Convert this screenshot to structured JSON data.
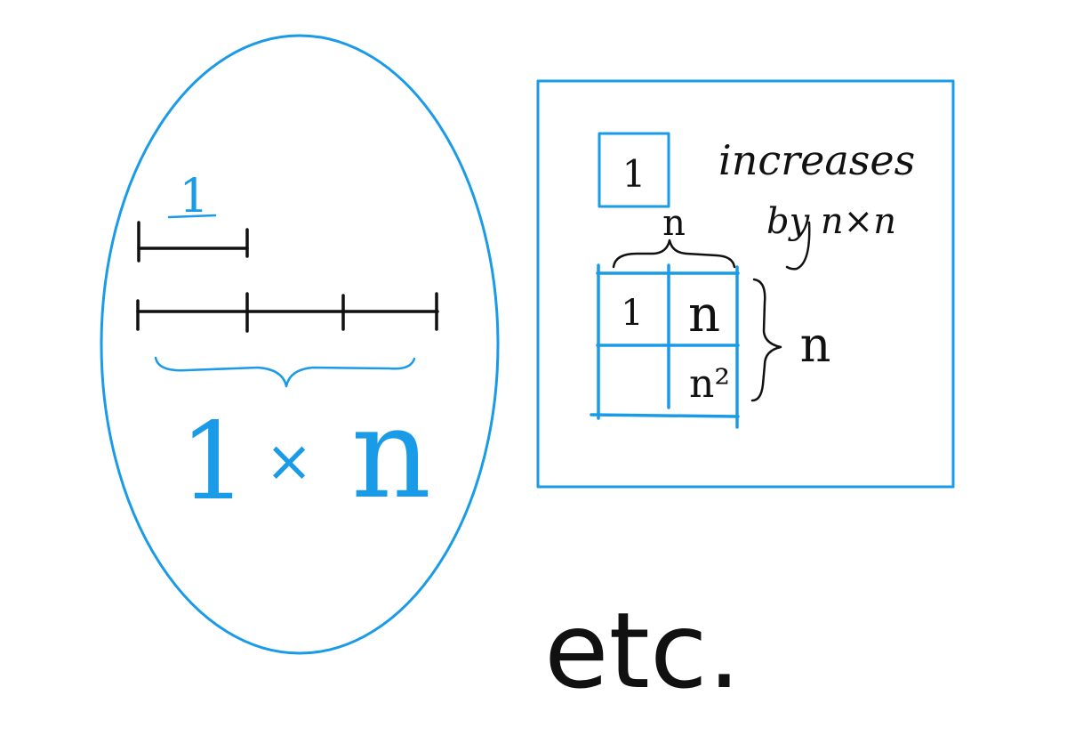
{
  "left_panel": {
    "unit_label": "1",
    "product_label": {
      "left": "1",
      "times": "×",
      "right": "n"
    }
  },
  "right_panel": {
    "unit_box_label": "1",
    "note_line1": "increases",
    "note_line2": "by n×n",
    "top_brace_label": "n",
    "side_brace_label": "n",
    "grid_cells": [
      "1",
      "n",
      "",
      "n²"
    ]
  },
  "footer_text": "etc.",
  "colors": {
    "accent": "#1a9be8",
    "ink": "#111111",
    "background": "#ffffff"
  }
}
